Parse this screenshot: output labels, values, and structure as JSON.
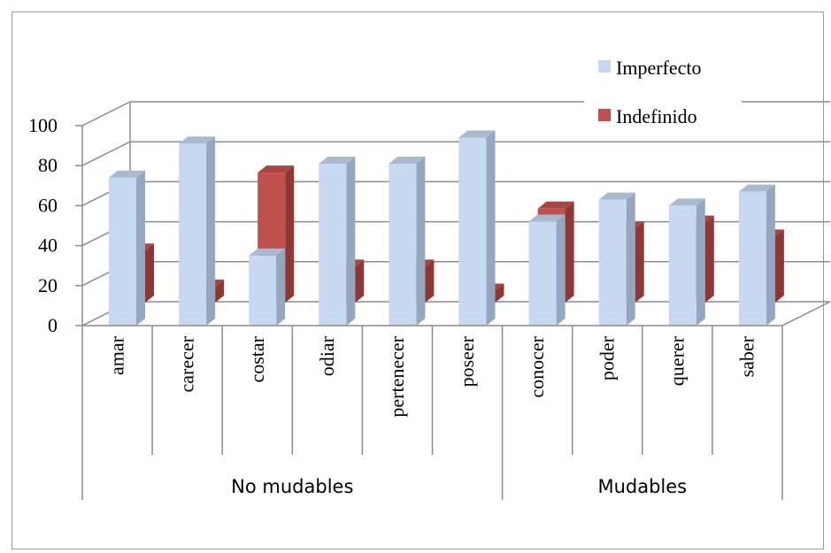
{
  "chart_data": {
    "type": "bar",
    "categories": [
      "amar",
      "carecer",
      "costar",
      "odiar",
      "pertenecer",
      "poseer",
      "conocer",
      "poder",
      "querer",
      "saber"
    ],
    "groups": [
      {
        "label": "No mudables",
        "count": 6
      },
      {
        "label": "Mudables",
        "count": 4
      }
    ],
    "series": [
      {
        "name": "Imperfecto",
        "color": "#c6d9f1",
        "values": [
          74,
          91,
          35,
          81,
          81,
          94,
          52,
          63,
          60,
          67
        ]
      },
      {
        "name": "Indefinido",
        "color": "#c0504d",
        "values": [
          26,
          8,
          65,
          18,
          18,
          6,
          47,
          37,
          40,
          33
        ]
      }
    ],
    "y_ticks": [
      "0",
      "20",
      "40",
      "60",
      "80",
      "100"
    ],
    "ylim": [
      0,
      100
    ],
    "legend_position": "top-right",
    "grid": true
  }
}
